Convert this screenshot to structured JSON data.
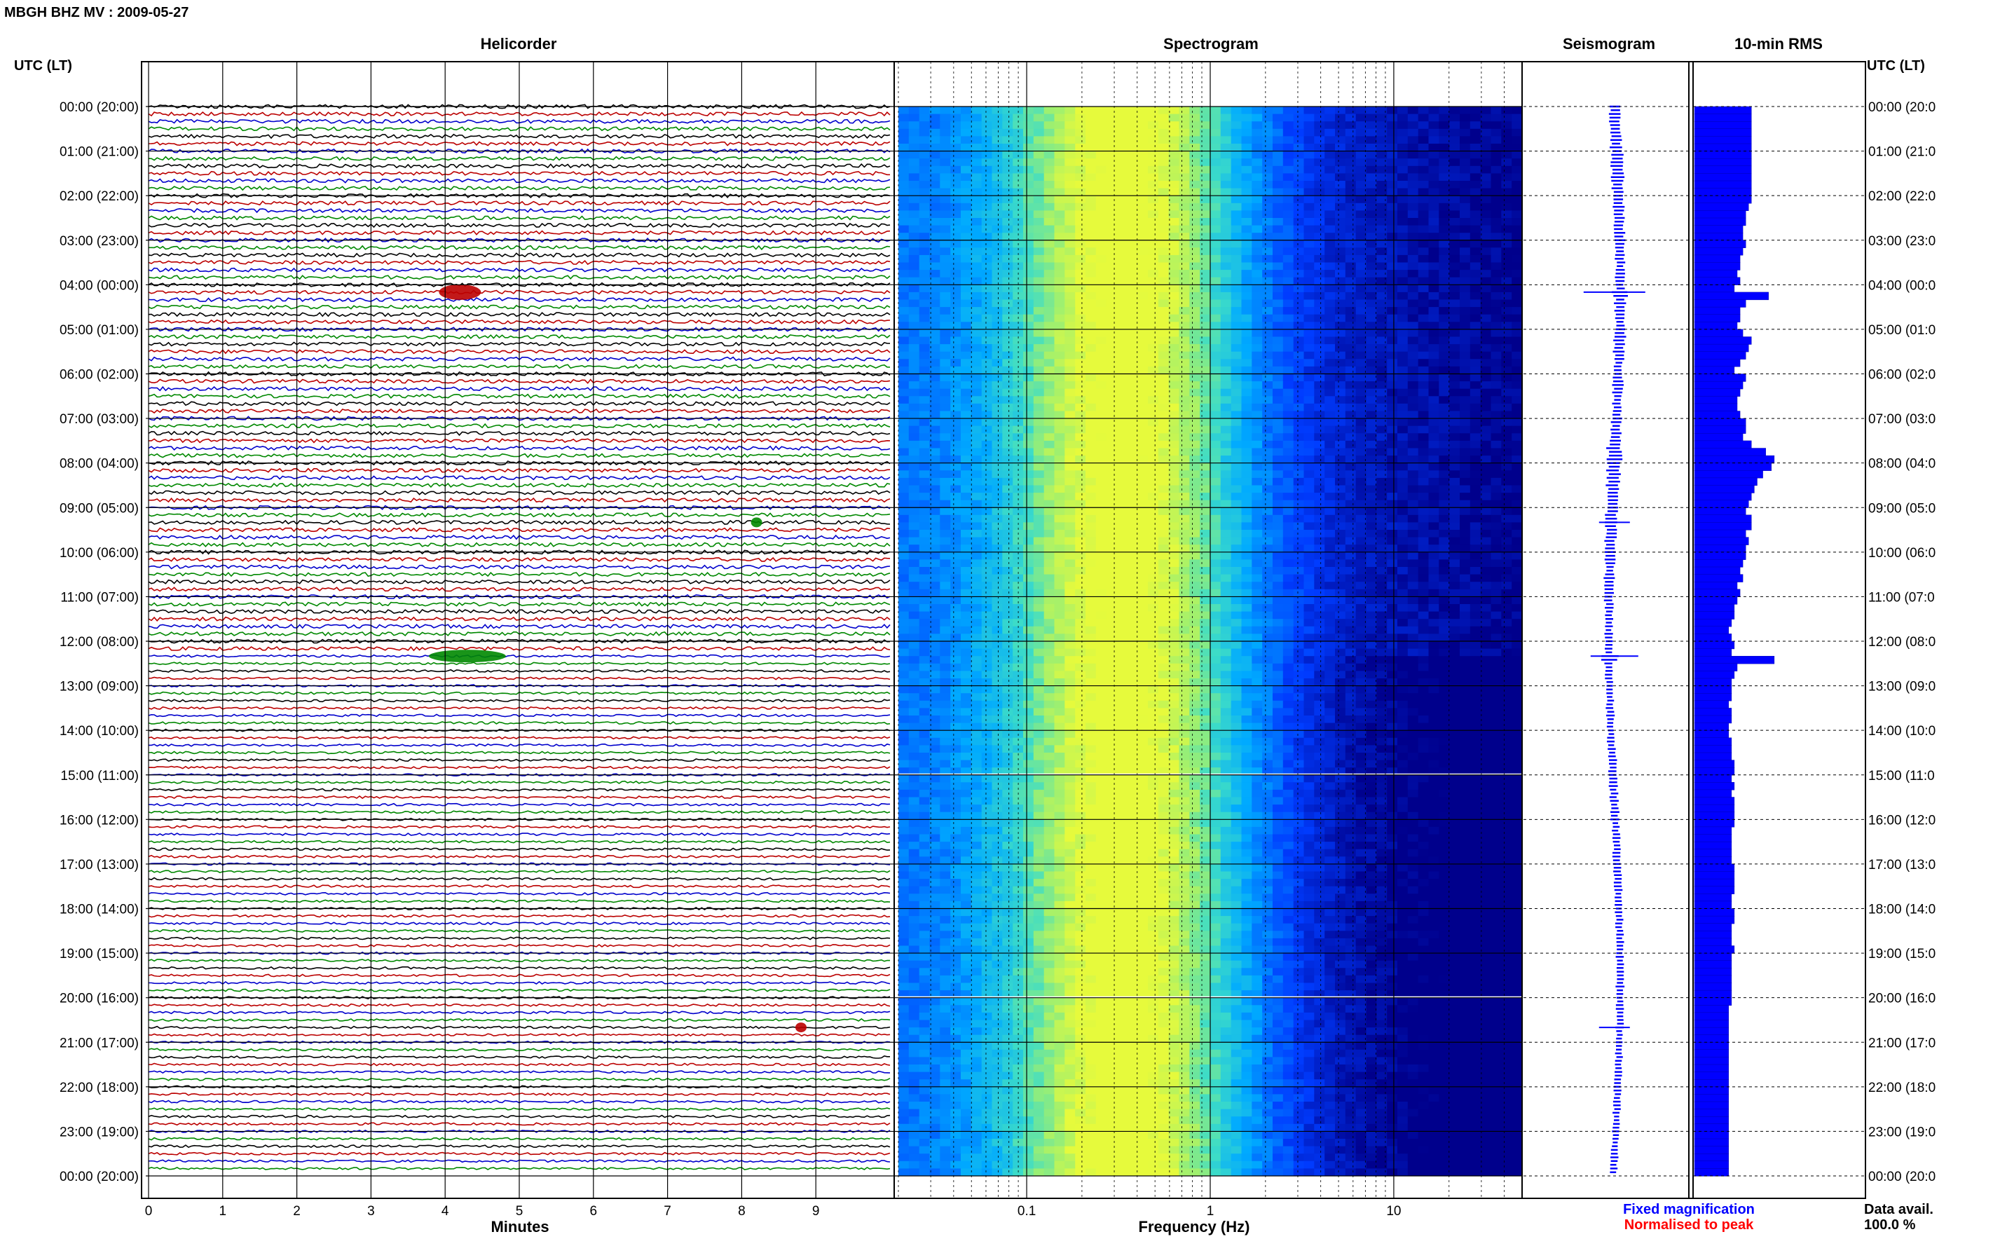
{
  "header": {
    "title": "MBGH BHZ MV : 2009-05-27",
    "utc_label_left": "UTC (LT)",
    "utc_label_right": "UTC (LT)"
  },
  "panels": {
    "helicorder": "Helicorder",
    "spectrogram": "Spectrogram",
    "seismogram": "Seismogram",
    "rms": "10-min RMS"
  },
  "axes": {
    "minutes_label": "Minutes",
    "frequency_label": "Frequency (Hz)",
    "minute_ticks": [
      "0",
      "1",
      "2",
      "3",
      "4",
      "5",
      "6",
      "7",
      "8",
      "9"
    ],
    "frequency_ticks": [
      "0.1",
      "1",
      "10"
    ]
  },
  "time_labels_left": [
    "00:00 (20:00)",
    "01:00 (21:00)",
    "02:00 (22:00)",
    "03:00 (23:00)",
    "04:00 (00:00)",
    "05:00 (01:00)",
    "06:00 (02:00)",
    "07:00 (03:00)",
    "08:00 (04:00)",
    "09:00 (05:00)",
    "10:00 (06:00)",
    "11:00 (07:00)",
    "12:00 (08:00)",
    "13:00 (09:00)",
    "14:00 (10:00)",
    "15:00 (11:00)",
    "16:00 (12:00)",
    "17:00 (13:00)",
    "18:00 (14:00)",
    "19:00 (15:00)",
    "20:00 (16:00)",
    "21:00 (17:00)",
    "22:00 (18:00)",
    "23:00 (19:00)",
    "00:00 (20:00)"
  ],
  "time_labels_right": [
    "00:00 (20:0",
    "01:00 (21:0",
    "02:00 (22:0",
    "03:00 (23:0",
    "04:00 (00:0",
    "05:00 (01:0",
    "06:00 (02:0",
    "07:00 (03:0",
    "08:00 (04:0",
    "09:00 (05:0",
    "10:00 (06:0",
    "11:00 (07:0",
    "12:00 (08:0",
    "13:00 (09:0",
    "14:00 (10:0",
    "15:00 (11:0",
    "16:00 (12:0",
    "17:00 (13:0",
    "18:00 (14:0",
    "19:00 (15:0",
    "20:00 (16:0",
    "21:00 (17:0",
    "22:00 (18:0",
    "23:00 (19:0",
    "00:00 (20:0"
  ],
  "legend": {
    "fixed": "Fixed magnification",
    "normalised": "Normalised to peak",
    "fixed_color": "#0000ff",
    "normalised_color": "#ff0000"
  },
  "data_availability": {
    "label": "Data avail.",
    "value": "100.0 %"
  },
  "colors": {
    "trace_cycle": [
      "#000000",
      "#bb0000",
      "#0000cc",
      "#008800"
    ],
    "rms_bar": "#0000ff",
    "seismogram": "#0000ff"
  },
  "chart_data": {
    "type": "heatmap",
    "helicorder": {
      "rows_per_hour": 6,
      "total_rows": 144,
      "minutes_per_row": 10,
      "events": [
        {
          "row": 25,
          "minute": 4.2,
          "color_index": 1
        },
        {
          "row": 74,
          "minute": 4.3,
          "color_index": 3
        },
        {
          "row": 56,
          "minute": 8.2,
          "color_index": 3
        },
        {
          "row": 124,
          "minute": 8.8,
          "color_index": 1
        }
      ]
    },
    "spectrogram": {
      "xscale": "log",
      "xlim": [
        0.02,
        50
      ],
      "xlabel": "Frequency (Hz)",
      "gap_rows": [
        89,
        119
      ]
    },
    "rms_10min": [
      0.2,
      0.2,
      0.2,
      0.2,
      0.2,
      0.2,
      0.2,
      0.2,
      0.2,
      0.2,
      0.2,
      0.2,
      0.2,
      0.19,
      0.18,
      0.18,
      0.17,
      0.17,
      0.18,
      0.17,
      0.16,
      0.16,
      0.15,
      0.16,
      0.14,
      0.26,
      0.18,
      0.16,
      0.16,
      0.15,
      0.17,
      0.2,
      0.19,
      0.18,
      0.16,
      0.14,
      0.18,
      0.17,
      0.16,
      0.15,
      0.15,
      0.16,
      0.18,
      0.18,
      0.17,
      0.2,
      0.25,
      0.28,
      0.27,
      0.24,
      0.22,
      0.21,
      0.2,
      0.19,
      0.18,
      0.2,
      0.2,
      0.18,
      0.19,
      0.18,
      0.18,
      0.17,
      0.16,
      0.17,
      0.15,
      0.16,
      0.15,
      0.14,
      0.14,
      0.13,
      0.12,
      0.13,
      0.14,
      0.13,
      0.28,
      0.15,
      0.14,
      0.13,
      0.13,
      0.13,
      0.12,
      0.13,
      0.13,
      0.12,
      0.12,
      0.13,
      0.13,
      0.13,
      0.14,
      0.14,
      0.13,
      0.14,
      0.13,
      0.14,
      0.14,
      0.14,
      0.14,
      0.13,
      0.13,
      0.13,
      0.13,
      0.13,
      0.14,
      0.14,
      0.14,
      0.14,
      0.13,
      0.13,
      0.14,
      0.14,
      0.13,
      0.13,
      0.13,
      0.14,
      0.13,
      0.13,
      0.13,
      0.13,
      0.13,
      0.13,
      0.13,
      0.12,
      0.12,
      0.12,
      0.12,
      0.12,
      0.12,
      0.12,
      0.12,
      0.12,
      0.12,
      0.12,
      0.12,
      0.12,
      0.12,
      0.12,
      0.12,
      0.12,
      0.12,
      0.12,
      0.12,
      0.12,
      0.12,
      0.12
    ]
  }
}
